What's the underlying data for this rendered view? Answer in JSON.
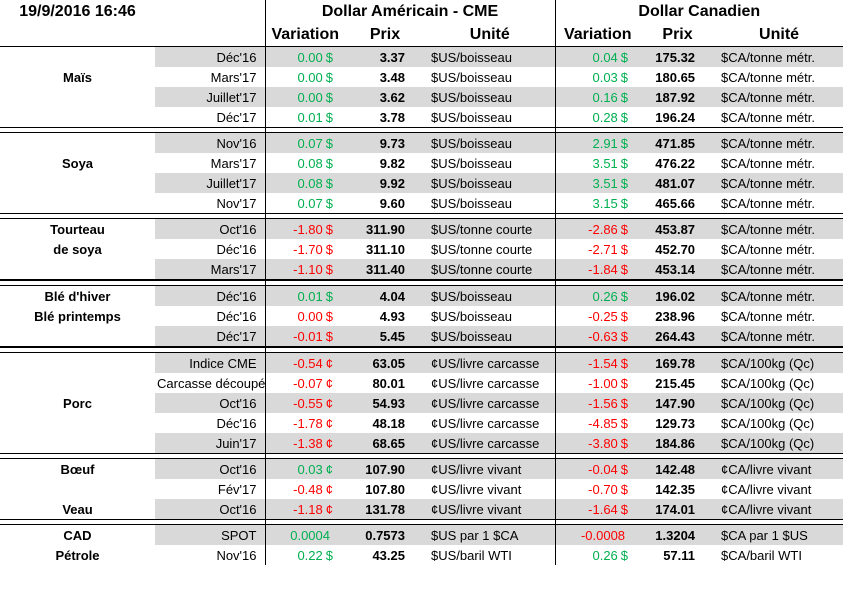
{
  "header": {
    "datetime": "19/9/2016 16:46",
    "group_us": "Dollar Américain - CME",
    "group_ca": "Dollar Canadien",
    "col_variation": "Variation",
    "col_prix": "Prix",
    "col_unite": "Unité"
  },
  "colors": {
    "positive": "#00b050",
    "negative": "#ff0000",
    "row_shade": "#d9d9d9"
  },
  "sections": [
    {
      "id": "mais",
      "labels": [
        {
          "text": "Maïs",
          "row": 1
        }
      ],
      "rows": [
        {
          "contract": "Déc'16",
          "us_var": "0.00",
          "us_sym": "$",
          "us_sign": "pos",
          "us_price": "3.37",
          "us_unit": "$US/boisseau",
          "ca_var": "0.04",
          "ca_sym": "$",
          "ca_sign": "pos",
          "ca_price": "175.32",
          "ca_unit": "$CA/tonne métr."
        },
        {
          "contract": "Mars'17",
          "us_var": "0.00",
          "us_sym": "$",
          "us_sign": "pos",
          "us_price": "3.48",
          "us_unit": "$US/boisseau",
          "ca_var": "0.03",
          "ca_sym": "$",
          "ca_sign": "pos",
          "ca_price": "180.65",
          "ca_unit": "$CA/tonne métr."
        },
        {
          "contract": "Juillet'17",
          "us_var": "0.00",
          "us_sym": "$",
          "us_sign": "pos",
          "us_price": "3.62",
          "us_unit": "$US/boisseau",
          "ca_var": "0.16",
          "ca_sym": "$",
          "ca_sign": "pos",
          "ca_price": "187.92",
          "ca_unit": "$CA/tonne métr."
        },
        {
          "contract": "Déc'17",
          "us_var": "0.01",
          "us_sym": "$",
          "us_sign": "pos",
          "us_price": "3.78",
          "us_unit": "$US/boisseau",
          "ca_var": "0.28",
          "ca_sym": "$",
          "ca_sign": "pos",
          "ca_price": "196.24",
          "ca_unit": "$CA/tonne métr."
        }
      ]
    },
    {
      "id": "soya",
      "labels": [
        {
          "text": "Soya",
          "row": 1
        }
      ],
      "rows": [
        {
          "contract": "Nov'16",
          "us_var": "0.07",
          "us_sym": "$",
          "us_sign": "pos",
          "us_price": "9.73",
          "us_unit": "$US/boisseau",
          "ca_var": "2.91",
          "ca_sym": "$",
          "ca_sign": "pos",
          "ca_price": "471.85",
          "ca_unit": "$CA/tonne métr."
        },
        {
          "contract": "Mars'17",
          "us_var": "0.08",
          "us_sym": "$",
          "us_sign": "pos",
          "us_price": "9.82",
          "us_unit": "$US/boisseau",
          "ca_var": "3.51",
          "ca_sym": "$",
          "ca_sign": "pos",
          "ca_price": "476.22",
          "ca_unit": "$CA/tonne métr."
        },
        {
          "contract": "Juillet'17",
          "us_var": "0.08",
          "us_sym": "$",
          "us_sign": "pos",
          "us_price": "9.92",
          "us_unit": "$US/boisseau",
          "ca_var": "3.51",
          "ca_sym": "$",
          "ca_sign": "pos",
          "ca_price": "481.07",
          "ca_unit": "$CA/tonne métr."
        },
        {
          "contract": "Nov'17",
          "us_var": "0.07",
          "us_sym": "$",
          "us_sign": "pos",
          "us_price": "9.60",
          "us_unit": "$US/boisseau",
          "ca_var": "3.15",
          "ca_sym": "$",
          "ca_sign": "pos",
          "ca_price": "465.66",
          "ca_unit": "$CA/tonne métr."
        }
      ]
    },
    {
      "id": "tourteau",
      "labels": [
        {
          "text": "Tourteau",
          "row": 0
        },
        {
          "text": "de soya",
          "row": 1
        }
      ],
      "rows": [
        {
          "contract": "Oct'16",
          "us_var": "-1.80",
          "us_sym": "$",
          "us_sign": "neg",
          "us_price": "311.90",
          "us_unit": "$US/tonne courte",
          "ca_var": "-2.86",
          "ca_sym": "$",
          "ca_sign": "neg",
          "ca_price": "453.87",
          "ca_unit": "$CA/tonne métr."
        },
        {
          "contract": "Déc'16",
          "us_var": "-1.70",
          "us_sym": "$",
          "us_sign": "neg",
          "us_price": "311.10",
          "us_unit": "$US/tonne courte",
          "ca_var": "-2.71",
          "ca_sym": "$",
          "ca_sign": "neg",
          "ca_price": "452.70",
          "ca_unit": "$CA/tonne métr."
        },
        {
          "contract": "Mars'17",
          "us_var": "-1.10",
          "us_sym": "$",
          "us_sign": "neg",
          "us_price": "311.40",
          "us_unit": "$US/tonne courte",
          "ca_var": "-1.84",
          "ca_sym": "$",
          "ca_sign": "neg",
          "ca_price": "453.14",
          "ca_unit": "$CA/tonne métr."
        }
      ]
    },
    {
      "id": "ble",
      "labels": [
        {
          "text": "Blé d'hiver",
          "row": 0
        },
        {
          "text": "Blé printemps",
          "row": 1
        }
      ],
      "rows": [
        {
          "contract": "Déc'16",
          "us_var": "0.01",
          "us_sym": "$",
          "us_sign": "pos",
          "us_price": "4.04",
          "us_unit": "$US/boisseau",
          "ca_var": "0.26",
          "ca_sym": "$",
          "ca_sign": "pos",
          "ca_price": "196.02",
          "ca_unit": "$CA/tonne métr."
        },
        {
          "contract": "Déc'16",
          "us_var": "0.00",
          "us_sym": "$",
          "us_sign": "neg",
          "us_price": "4.93",
          "us_unit": "$US/boisseau",
          "ca_var": "-0.25",
          "ca_sym": "$",
          "ca_sign": "neg",
          "ca_price": "238.96",
          "ca_unit": "$CA/tonne métr."
        },
        {
          "contract": "Déc'17",
          "us_var": "-0.01",
          "us_sym": "$",
          "us_sign": "neg",
          "us_price": "5.45",
          "us_unit": "$US/boisseau",
          "ca_var": "-0.63",
          "ca_sym": "$",
          "ca_sign": "neg",
          "ca_price": "264.43",
          "ca_unit": "$CA/tonne métr."
        }
      ]
    },
    {
      "id": "porc",
      "labels": [
        {
          "text": "Porc",
          "row": 2
        }
      ],
      "rows": [
        {
          "contract": "Indice CME",
          "us_var": "-0.54",
          "us_sym": "¢",
          "us_sign": "neg",
          "us_price": "63.05",
          "us_unit": "¢US/livre carcasse",
          "ca_var": "-1.54",
          "ca_sym": "$",
          "ca_sign": "neg",
          "ca_price": "169.78",
          "ca_unit": "$CA/100kg (Qc)"
        },
        {
          "contract": "Carcasse découpée",
          "us_var": "-0.07",
          "us_sym": "¢",
          "us_sign": "neg",
          "us_price": "80.01",
          "us_unit": "¢US/livre carcasse",
          "ca_var": "-1.00",
          "ca_sym": "$",
          "ca_sign": "neg",
          "ca_price": "215.45",
          "ca_unit": "$CA/100kg (Qc)"
        },
        {
          "contract": "Oct'16",
          "us_var": "-0.55",
          "us_sym": "¢",
          "us_sign": "neg",
          "us_price": "54.93",
          "us_unit": "¢US/livre carcasse",
          "ca_var": "-1.56",
          "ca_sym": "$",
          "ca_sign": "neg",
          "ca_price": "147.90",
          "ca_unit": "$CA/100kg (Qc)"
        },
        {
          "contract": "Déc'16",
          "us_var": "-1.78",
          "us_sym": "¢",
          "us_sign": "neg",
          "us_price": "48.18",
          "us_unit": "¢US/livre carcasse",
          "ca_var": "-4.85",
          "ca_sym": "$",
          "ca_sign": "neg",
          "ca_price": "129.73",
          "ca_unit": "$CA/100kg (Qc)"
        },
        {
          "contract": "Juin'17",
          "us_var": "-1.38",
          "us_sym": "¢",
          "us_sign": "neg",
          "us_price": "68.65",
          "us_unit": "¢US/livre carcasse",
          "ca_var": "-3.80",
          "ca_sym": "$",
          "ca_sign": "neg",
          "ca_price": "184.86",
          "ca_unit": "$CA/100kg (Qc)"
        }
      ]
    },
    {
      "id": "boeuf",
      "labels": [
        {
          "text": "Bœuf",
          "row": 0
        },
        {
          "text": "Veau",
          "row": 2
        }
      ],
      "rows": [
        {
          "contract": "Oct'16",
          "us_var": "0.03",
          "us_sym": "¢",
          "us_sign": "pos",
          "us_price": "107.90",
          "us_unit": "¢US/livre vivant",
          "ca_var": "-0.04",
          "ca_sym": "$",
          "ca_sign": "neg",
          "ca_price": "142.48",
          "ca_unit": "¢CA/livre vivant"
        },
        {
          "contract": "Fév'17",
          "us_var": "-0.48",
          "us_sym": "¢",
          "us_sign": "neg",
          "us_price": "107.80",
          "us_unit": "¢US/livre vivant",
          "ca_var": "-0.70",
          "ca_sym": "$",
          "ca_sign": "neg",
          "ca_price": "142.35",
          "ca_unit": "¢CA/livre vivant"
        },
        {
          "contract": "Oct'16",
          "us_var": "-1.18",
          "us_sym": "¢",
          "us_sign": "neg",
          "us_price": "131.78",
          "us_unit": "¢US/livre vivant",
          "ca_var": "-1.64",
          "ca_sym": "$",
          "ca_sign": "neg",
          "ca_price": "174.01",
          "ca_unit": "¢CA/livre vivant"
        }
      ]
    },
    {
      "id": "cad",
      "labels": [
        {
          "text": "CAD",
          "row": 0
        },
        {
          "text": "Pétrole",
          "row": 1
        }
      ],
      "rows": [
        {
          "contract": "SPOT",
          "us_var": "0.0004",
          "us_sym": "",
          "us_sign": "pos",
          "us_price": "0.7573",
          "us_unit": "$US par 1 $CA",
          "ca_var": "-0.0008",
          "ca_sym": "",
          "ca_sign": "neg",
          "ca_price": "1.3204",
          "ca_unit": "$CA par 1 $US"
        },
        {
          "contract": "Nov'16",
          "us_var": "0.22",
          "us_sym": "$",
          "us_sign": "pos",
          "us_price": "43.25",
          "us_unit": "$US/baril WTI",
          "ca_var": "0.26",
          "ca_sym": "$",
          "ca_sign": "pos",
          "ca_price": "57.11",
          "ca_unit": "$CA/baril WTI"
        }
      ]
    }
  ]
}
